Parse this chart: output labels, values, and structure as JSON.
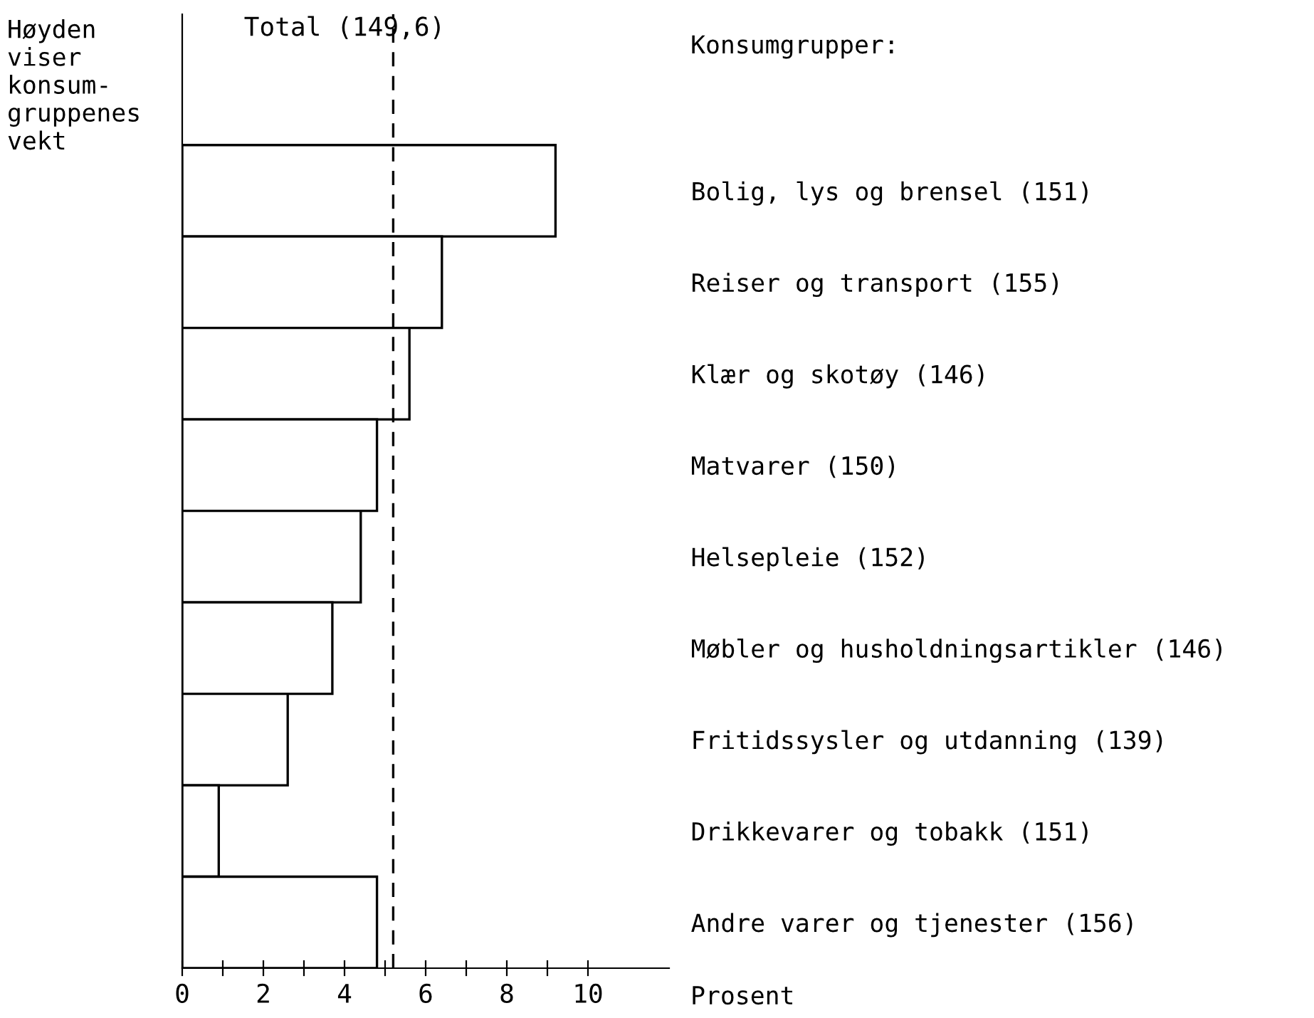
{
  "chart_data": {
    "type": "bar",
    "orientation": "horizontal",
    "ylabel": "Høyden\nviser\nkonsum-\ngruppenes\nvekt",
    "xlabel": "Prosent",
    "annotations": [
      "Konsumgrupper:"
    ],
    "categories": [
      "Bolig, lys og brensel (151)",
      "Reiser og transport (155)",
      "Klær og skotøy (146)",
      "Matvarer (150)",
      "Helsepleie (152)",
      "Møbler og husholdningsartikler (146)",
      "Fritidssysler og utdanning (139)",
      "Drikkevarer og tobakk (151)",
      "Andre varer og tjenester (156)"
    ],
    "values": [
      9.2,
      6.4,
      5.6,
      4.8,
      4.4,
      3.7,
      2.6,
      0.9,
      4.8
    ],
    "color": "#ffffff",
    "xlim": [
      0,
      12
    ],
    "xticks": [
      0,
      {
        "value": 1,
        "label": null
      },
      2,
      {
        "value": 3,
        "label": null
      },
      4,
      {
        "value": 5,
        "label": null
      },
      6,
      {
        "value": 7,
        "label": null
      },
      8,
      {
        "value": 9,
        "label": null
      },
      10
    ],
    "ref_lines": [
      {
        "axis": "x",
        "value": 5.2,
        "label": "Total (149,6)",
        "color": "#000000",
        "line_style": "dashed"
      }
    ],
    "grid": false,
    "legend": false
  }
}
